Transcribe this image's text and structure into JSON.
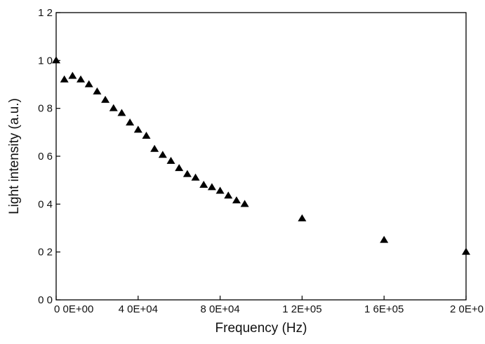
{
  "chart_data": {
    "type": "scatter",
    "title": "",
    "xlabel": "Frequency (Hz)",
    "ylabel": "Light intensity (a.u.)",
    "xlim": [
      0,
      200000
    ],
    "ylim": [
      0,
      1.2
    ],
    "x_ticks": [
      0,
      40000,
      80000,
      120000,
      160000,
      200000
    ],
    "x_tick_labels": [
      "0 0E+00",
      "4 0E+04",
      "8 0E+04",
      "1 2E+05",
      "1 6E+05",
      "2 0E+0"
    ],
    "y_ticks": [
      0,
      0.2,
      0.4,
      0.6,
      0.8,
      1.0,
      1.2
    ],
    "y_tick_labels": [
      "0 0",
      "0 2",
      "0 4",
      "0 6",
      "0 8",
      "1 0",
      "1 2"
    ],
    "grid": false,
    "marker": "filled-triangle",
    "series": [
      {
        "points": [
          [
            0,
            1.0
          ],
          [
            4000,
            0.92
          ],
          [
            8000,
            0.935
          ],
          [
            12000,
            0.92
          ],
          [
            16000,
            0.9
          ],
          [
            20000,
            0.87
          ],
          [
            24000,
            0.835
          ],
          [
            28000,
            0.8
          ],
          [
            32000,
            0.78
          ],
          [
            36000,
            0.74
          ],
          [
            40000,
            0.71
          ],
          [
            44000,
            0.685
          ],
          [
            48000,
            0.63
          ],
          [
            52000,
            0.605
          ],
          [
            56000,
            0.58
          ],
          [
            60000,
            0.55
          ],
          [
            64000,
            0.525
          ],
          [
            68000,
            0.51
          ],
          [
            72000,
            0.48
          ],
          [
            76000,
            0.47
          ],
          [
            80000,
            0.455
          ],
          [
            84000,
            0.435
          ],
          [
            88000,
            0.415
          ],
          [
            92000,
            0.4
          ],
          [
            120000,
            0.34
          ],
          [
            160000,
            0.25
          ],
          [
            200000,
            0.2
          ]
        ]
      }
    ]
  }
}
